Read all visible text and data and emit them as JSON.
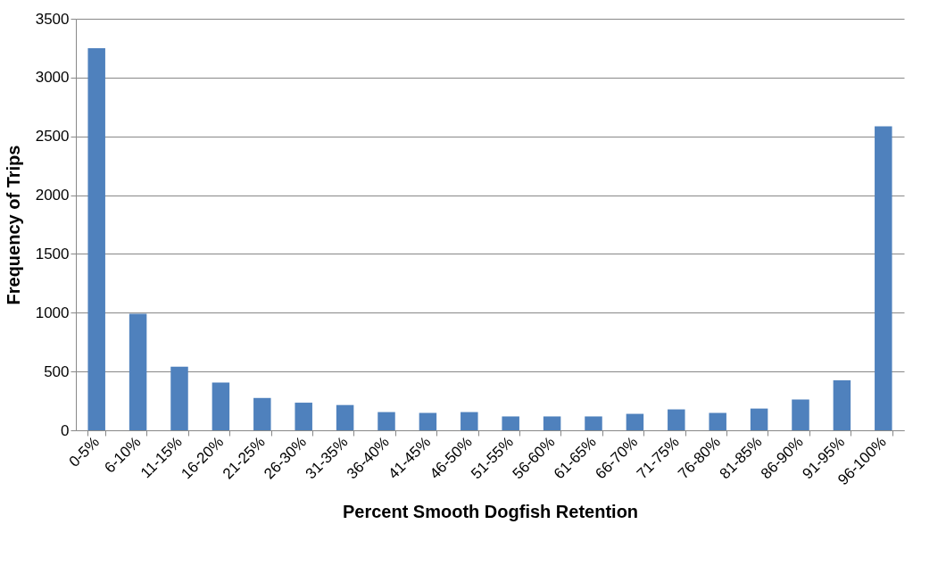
{
  "chart_data": {
    "type": "bar",
    "xlabel": "Percent Smooth Dogfish Retention",
    "ylabel": "Frequency of Trips",
    "categories": [
      "0-5%",
      "6-10%",
      "11-15%",
      "16-20%",
      "21-25%",
      "26-30%",
      "31-35%",
      "36-40%",
      "41-45%",
      "46-50%",
      "51-55%",
      "56-60%",
      "61-65%",
      "66-70%",
      "71-75%",
      "76-80%",
      "81-85%",
      "86-90%",
      "91-95%",
      "96-100%"
    ],
    "values": [
      3250,
      990,
      540,
      407,
      275,
      235,
      215,
      155,
      148,
      155,
      118,
      118,
      118,
      140,
      178,
      148,
      185,
      262,
      425,
      2585
    ],
    "color": "#4f81bd",
    "ylim": [
      0,
      3500
    ],
    "yticks": [
      0,
      500,
      1000,
      1500,
      2000,
      2500,
      3000,
      3500
    ],
    "grid": "y"
  }
}
